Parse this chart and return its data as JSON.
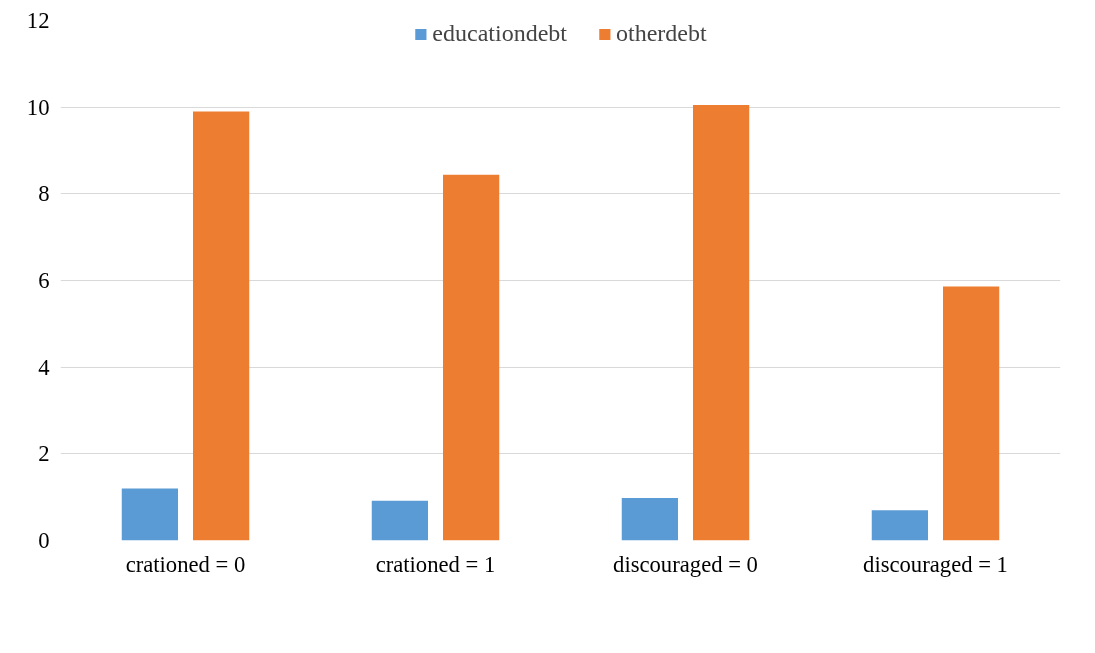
{
  "chart_data": {
    "type": "bar",
    "categories": [
      "crationed = 0",
      "crationed = 1",
      "discouraged = 0",
      "discouraged = 1"
    ],
    "series": [
      {
        "name": "educationdebt",
        "color": "#5b9bd5",
        "values": [
          1.2,
          0.92,
          0.98,
          0.7
        ]
      },
      {
        "name": "otherdebt",
        "color": "#ed7d31",
        "values": [
          9.9,
          8.44,
          10.05,
          5.86
        ]
      }
    ],
    "ylim": [
      0,
      12
    ],
    "yticks": [
      0,
      2,
      4,
      6,
      8,
      10,
      12
    ],
    "grid": "y",
    "legend": "top"
  }
}
